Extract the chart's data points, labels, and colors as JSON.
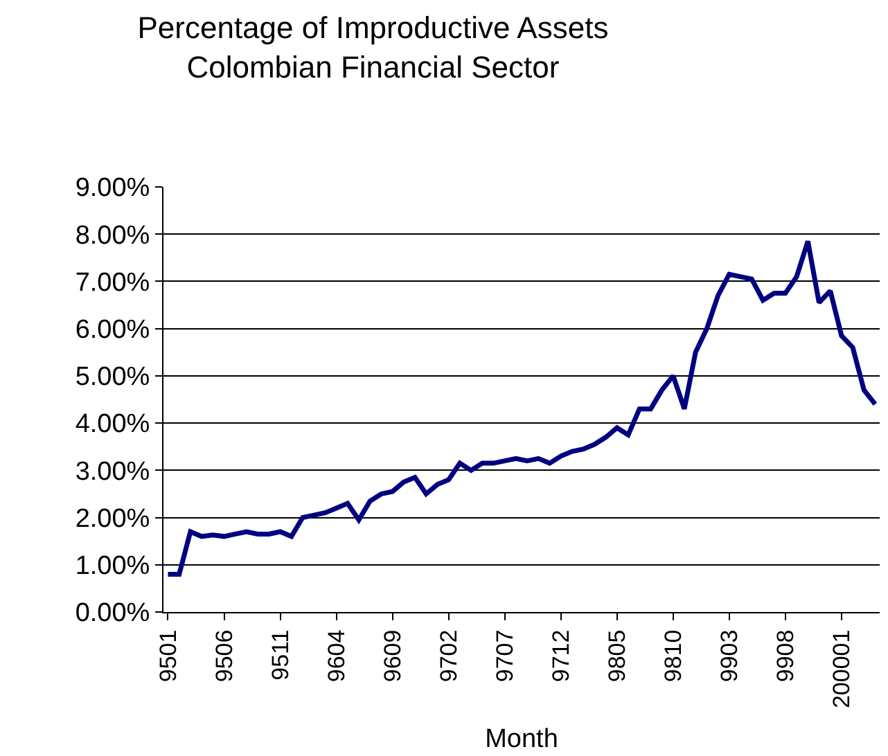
{
  "chart_data": {
    "type": "line",
    "title": "Percentage of Improductive Assets\nColombian Financial Sector",
    "xlabel": "Month",
    "categories": [
      "9501",
      null,
      null,
      null,
      null,
      "9506",
      null,
      null,
      null,
      null,
      "9511",
      null,
      null,
      null,
      null,
      "9604",
      null,
      null,
      null,
      null,
      "9609",
      null,
      null,
      null,
      null,
      "9702",
      null,
      null,
      null,
      null,
      "9707",
      null,
      null,
      null,
      null,
      "9712",
      null,
      null,
      null,
      null,
      "9805",
      null,
      null,
      null,
      null,
      "9810",
      null,
      null,
      null,
      null,
      "9903",
      null,
      null,
      null,
      null,
      "9908",
      null,
      null,
      null,
      null,
      "200001",
      null,
      null,
      null
    ],
    "series": [
      {
        "color": "#000080",
        "values": [
          0.8,
          0.8,
          1.7,
          1.6,
          1.63,
          1.6,
          1.65,
          1.7,
          1.65,
          1.65,
          1.7,
          1.6,
          2.0,
          2.05,
          2.1,
          2.2,
          2.3,
          1.95,
          2.35,
          2.5,
          2.55,
          2.75,
          2.85,
          2.5,
          2.7,
          2.8,
          3.15,
          3.0,
          3.15,
          3.15,
          3.2,
          3.25,
          3.2,
          3.25,
          3.15,
          3.3,
          3.4,
          3.45,
          3.55,
          3.7,
          3.9,
          3.75,
          4.3,
          4.3,
          4.7,
          5.0,
          4.3,
          5.5,
          6.0,
          6.7,
          7.15,
          7.1,
          7.05,
          6.6,
          6.75,
          6.75,
          7.1,
          7.85,
          6.55,
          6.8,
          5.85,
          5.6,
          4.7,
          4.4
        ]
      }
    ],
    "ylim": [
      0,
      9
    ],
    "yticks": [
      {
        "value": 0,
        "label": "0.00%"
      },
      {
        "value": 1,
        "label": "1.00%"
      },
      {
        "value": 2,
        "label": "2.00%"
      },
      {
        "value": 3,
        "label": "3.00%"
      },
      {
        "value": 4,
        "label": "4.00%"
      },
      {
        "value": 5,
        "label": "5.00%"
      },
      {
        "value": 6,
        "label": "6.00%"
      },
      {
        "value": 7,
        "label": "7.00%"
      },
      {
        "value": 8,
        "label": "8.00%"
      },
      {
        "value": 9,
        "label": "9.00%"
      }
    ],
    "grid": "y",
    "legend": false,
    "marker": "none",
    "line_style": "solid"
  }
}
